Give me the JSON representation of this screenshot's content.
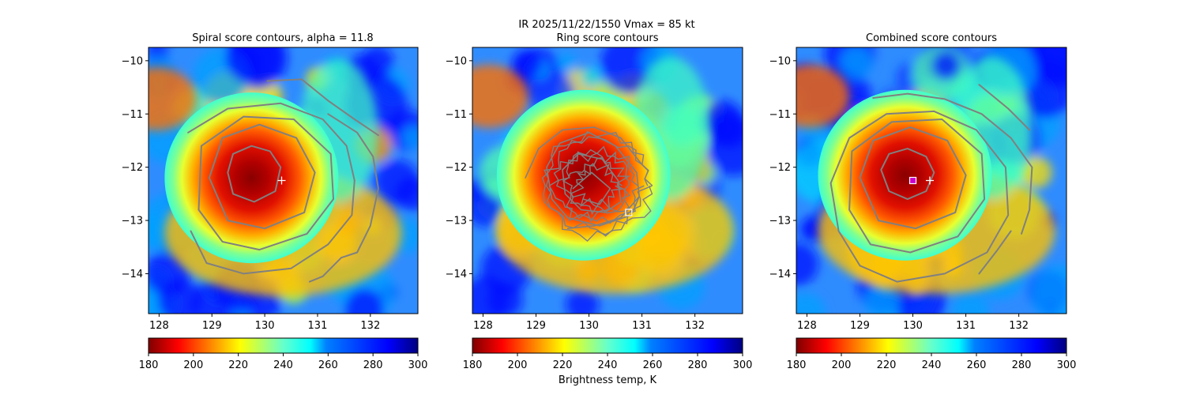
{
  "suptitle_line1": "IR  2025/11/22/1550    Vmax = 85 kt",
  "colorbar_label": "Brightness temp, K",
  "colors": {
    "contour": "#808080",
    "marker_white": "#ffffff",
    "marker_magenta": "#cc00cc",
    "axes": "#000000"
  },
  "colorbar": {
    "colormap": "jet_r",
    "vmin": 180,
    "vmax": 300,
    "ticks": [
      180,
      200,
      220,
      240,
      260,
      280,
      300
    ]
  },
  "chart_data": [
    {
      "type": "heatmap",
      "title": "Spiral score contours, alpha = 11.8",
      "xlim": [
        127.8,
        132.9
      ],
      "ylim": [
        -14.75,
        -9.75
      ],
      "xticks": [
        128,
        129,
        130,
        131,
        132
      ],
      "yticks": [
        -10,
        -11,
        -12,
        -13,
        -14
      ],
      "center": {
        "lon": 129.75,
        "lat": -12.2
      },
      "markers": [
        {
          "kind": "plus",
          "lon": 130.32,
          "lat": -12.25,
          "color": "white"
        }
      ],
      "contours": [
        [
          [
            129.3,
            -12.1
          ],
          [
            129.4,
            -11.75
          ],
          [
            129.75,
            -11.6
          ],
          [
            130.1,
            -11.7
          ],
          [
            130.3,
            -12.0
          ],
          [
            130.2,
            -12.45
          ],
          [
            129.8,
            -12.65
          ],
          [
            129.4,
            -12.5
          ],
          [
            129.3,
            -12.1
          ]
        ],
        [
          [
            128.95,
            -12.2
          ],
          [
            129.2,
            -11.45
          ],
          [
            129.9,
            -11.2
          ],
          [
            130.6,
            -11.45
          ],
          [
            130.95,
            -12.1
          ],
          [
            130.75,
            -12.85
          ],
          [
            130.0,
            -13.15
          ],
          [
            129.3,
            -13.0
          ],
          [
            128.95,
            -12.2
          ]
        ],
        [
          [
            128.75,
            -12.8
          ],
          [
            128.8,
            -11.6
          ],
          [
            129.6,
            -11.05
          ],
          [
            130.55,
            -11.1
          ],
          [
            131.25,
            -11.75
          ],
          [
            131.3,
            -12.6
          ],
          [
            130.8,
            -13.25
          ],
          [
            129.9,
            -13.55
          ],
          [
            129.2,
            -13.4
          ],
          [
            128.75,
            -12.8
          ]
        ],
        [
          [
            128.55,
            -11.35
          ],
          [
            129.3,
            -10.9
          ],
          [
            130.3,
            -10.8
          ],
          [
            131.1,
            -11.1
          ],
          [
            131.55,
            -11.6
          ],
          [
            131.7,
            -12.25
          ]
        ],
        [
          [
            131.7,
            -12.25
          ],
          [
            131.65,
            -12.9
          ],
          [
            131.2,
            -13.45
          ],
          [
            130.5,
            -13.9
          ],
          [
            129.6,
            -14.0
          ],
          [
            128.9,
            -13.8
          ],
          [
            128.6,
            -13.2
          ]
        ],
        [
          [
            130.05,
            -10.38
          ],
          [
            130.7,
            -10.35
          ],
          [
            131.2,
            -10.75
          ],
          [
            131.7,
            -11.1
          ],
          [
            132.15,
            -11.4
          ]
        ],
        [
          [
            131.2,
            -11.0
          ],
          [
            131.75,
            -11.35
          ],
          [
            132.05,
            -11.8
          ],
          [
            132.15,
            -12.4
          ],
          [
            132.0,
            -13.1
          ],
          [
            131.75,
            -13.6
          ],
          [
            131.45,
            -13.7
          ]
        ],
        [
          [
            131.45,
            -13.7
          ],
          [
            131.1,
            -14.05
          ],
          [
            130.85,
            -14.15
          ]
        ]
      ]
    },
    {
      "type": "heatmap",
      "title": "Ring score contours",
      "xlim": [
        127.8,
        132.9
      ],
      "ylim": [
        -14.75,
        -9.75
      ],
      "xticks": [
        128,
        129,
        130,
        131,
        132
      ],
      "yticks": [
        -10,
        -11,
        -12,
        -13,
        -14
      ],
      "center": {
        "lon": 129.9,
        "lat": -12.15
      },
      "markers": [
        {
          "kind": "square",
          "lon": 130.75,
          "lat": -12.85,
          "color": "white"
        }
      ],
      "contours": [
        [
          [
            129.3,
            -12.6
          ],
          [
            129.2,
            -12.0
          ],
          [
            129.45,
            -11.55
          ],
          [
            130.0,
            -11.35
          ],
          [
            130.5,
            -11.6
          ],
          [
            130.9,
            -12.1
          ],
          [
            130.95,
            -12.55
          ],
          [
            130.8,
            -12.9
          ],
          [
            130.2,
            -13.1
          ],
          [
            129.6,
            -12.95
          ],
          [
            129.3,
            -12.6
          ]
        ],
        [
          [
            129.55,
            -12.5
          ],
          [
            129.5,
            -12.05
          ],
          [
            129.8,
            -11.75
          ],
          [
            130.25,
            -11.85
          ],
          [
            130.55,
            -12.25
          ],
          [
            130.6,
            -12.65
          ],
          [
            130.3,
            -12.85
          ],
          [
            129.85,
            -12.8
          ],
          [
            129.55,
            -12.5
          ]
        ],
        [
          [
            128.8,
            -12.2
          ],
          [
            129.05,
            -11.65
          ],
          [
            129.5,
            -11.3
          ],
          [
            130.1,
            -11.25
          ],
          [
            130.6,
            -11.45
          ],
          [
            131.0,
            -11.95
          ]
        ],
        [
          [
            129.6,
            -13.15
          ],
          [
            130.1,
            -13.1
          ],
          [
            130.6,
            -12.95
          ],
          [
            130.95,
            -12.55
          ]
        ],
        [
          [
            129.7,
            -12.4
          ],
          [
            130.05,
            -12.1
          ],
          [
            130.4,
            -12.4
          ],
          [
            130.2,
            -12.7
          ],
          [
            129.9,
            -12.6
          ]
        ]
      ]
    },
    {
      "type": "heatmap",
      "title": "Combined score contours",
      "xlim": [
        127.8,
        132.9
      ],
      "ylim": [
        -14.75,
        -9.75
      ],
      "xticks": [
        128,
        129,
        130,
        131,
        132
      ],
      "yticks": [
        -10,
        -11,
        -12,
        -13,
        -14
      ],
      "center": {
        "lon": 129.85,
        "lat": -12.15
      },
      "markers": [
        {
          "kind": "square",
          "lon": 130.0,
          "lat": -12.25,
          "color": "magenta"
        },
        {
          "kind": "plus",
          "lon": 130.32,
          "lat": -12.25,
          "color": "white"
        }
      ],
      "contours": [
        [
          [
            129.4,
            -12.05
          ],
          [
            129.55,
            -11.75
          ],
          [
            129.9,
            -11.65
          ],
          [
            130.25,
            -11.8
          ],
          [
            130.4,
            -12.1
          ],
          [
            130.25,
            -12.45
          ],
          [
            129.9,
            -12.6
          ],
          [
            129.55,
            -12.45
          ],
          [
            129.4,
            -12.05
          ]
        ],
        [
          [
            129.0,
            -12.2
          ],
          [
            129.25,
            -11.5
          ],
          [
            129.95,
            -11.25
          ],
          [
            130.65,
            -11.5
          ],
          [
            131.0,
            -12.15
          ],
          [
            130.8,
            -12.85
          ],
          [
            130.05,
            -13.15
          ],
          [
            129.35,
            -13.0
          ],
          [
            129.0,
            -12.2
          ]
        ],
        [
          [
            128.8,
            -12.8
          ],
          [
            128.85,
            -11.7
          ],
          [
            129.6,
            -11.15
          ],
          [
            130.55,
            -11.1
          ],
          [
            131.3,
            -11.75
          ],
          [
            131.35,
            -12.6
          ],
          [
            130.85,
            -13.3
          ],
          [
            129.95,
            -13.6
          ],
          [
            129.2,
            -13.45
          ],
          [
            128.8,
            -12.8
          ]
        ],
        [
          [
            128.6,
            -13.2
          ],
          [
            128.45,
            -12.3
          ],
          [
            128.8,
            -11.45
          ],
          [
            129.5,
            -11.0
          ],
          [
            130.4,
            -10.95
          ],
          [
            131.2,
            -11.3
          ],
          [
            131.75,
            -12.0
          ],
          [
            131.8,
            -12.9
          ],
          [
            131.4,
            -13.6
          ],
          [
            130.6,
            -14.0
          ],
          [
            129.7,
            -14.15
          ],
          [
            129.0,
            -13.85
          ],
          [
            128.6,
            -13.2
          ]
        ],
        [
          [
            129.25,
            -10.7
          ],
          [
            129.9,
            -10.62
          ],
          [
            130.6,
            -10.72
          ],
          [
            131.3,
            -11.0
          ],
          [
            131.85,
            -11.45
          ],
          [
            132.25,
            -12.0
          ],
          [
            132.2,
            -12.8
          ],
          [
            132.05,
            -13.25
          ]
        ],
        [
          [
            131.25,
            -10.45
          ],
          [
            131.8,
            -10.9
          ],
          [
            132.2,
            -11.3
          ]
        ],
        [
          [
            131.85,
            -13.2
          ],
          [
            131.6,
            -13.55
          ],
          [
            131.25,
            -14.0
          ]
        ]
      ]
    }
  ]
}
